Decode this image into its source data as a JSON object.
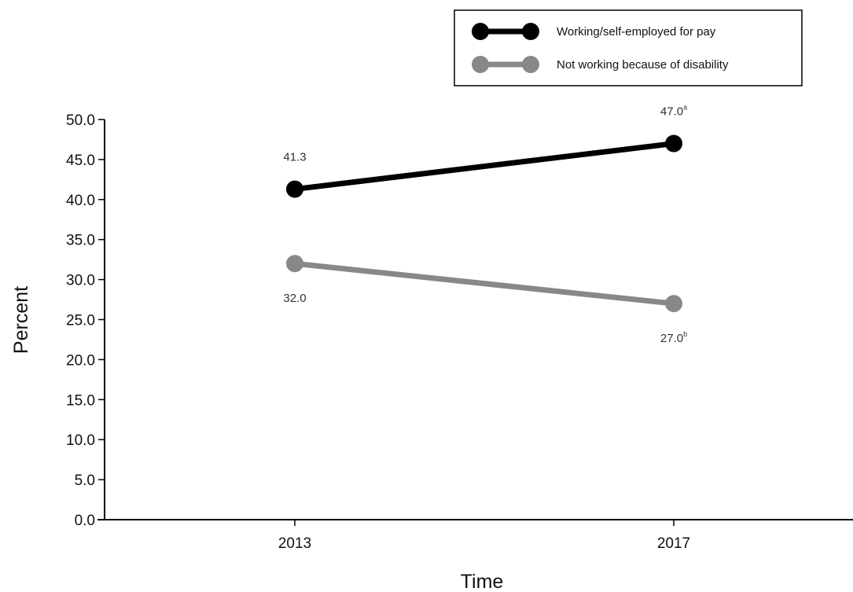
{
  "chart_data": {
    "type": "line",
    "xlabel": "Time",
    "ylabel": "Percent",
    "categories": [
      "2013",
      "2017"
    ],
    "ylim": [
      0,
      50
    ],
    "yticks": [
      "0.0",
      "5.0",
      "10.0",
      "15.0",
      "20.0",
      "25.0",
      "30.0",
      "35.0",
      "40.0",
      "45.0",
      "50.0"
    ],
    "grid": false,
    "legend_position": "top-right",
    "series": [
      {
        "name": "Working/self-employed for pay",
        "color": "#000000",
        "values": [
          41.3,
          47.0
        ],
        "labels": [
          {
            "text": "41.3",
            "sup": ""
          },
          {
            "text": "47.0",
            "sup": "a"
          }
        ]
      },
      {
        "name": "Not working because of disability",
        "color": "#888888",
        "values": [
          32.0,
          27.0
        ],
        "labels": [
          {
            "text": "32.0",
            "sup": ""
          },
          {
            "text": "27.0",
            "sup": "b"
          }
        ]
      }
    ]
  }
}
